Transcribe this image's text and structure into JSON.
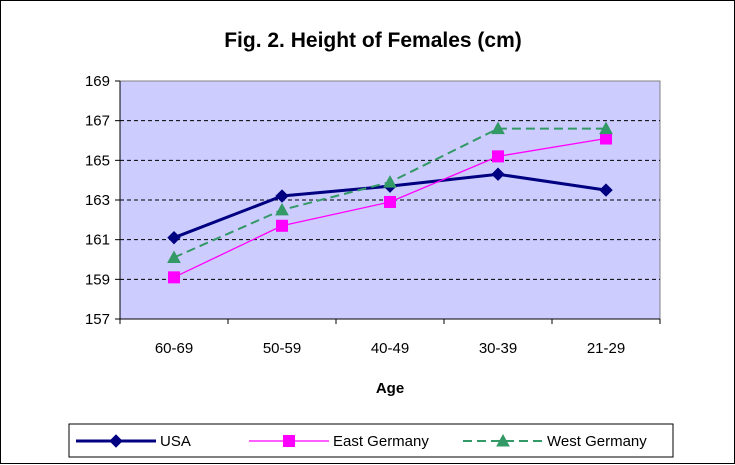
{
  "chart_data": {
    "type": "line",
    "title": "Fig. 2. Height of Females (cm)",
    "xlabel": "Age",
    "ylabel": "",
    "categories": [
      "60-69",
      "50-59",
      "40-49",
      "30-39",
      "21-29"
    ],
    "ylim": [
      157,
      169
    ],
    "yticks": [
      157,
      159,
      161,
      163,
      165,
      167,
      169
    ],
    "grid": "horizontal dashed",
    "plot_background": "#ccccff",
    "legend_position": "bottom",
    "series": [
      {
        "name": "USA",
        "values": [
          161.1,
          163.2,
          163.7,
          164.3,
          163.5
        ],
        "color": "#000080",
        "marker": "diamond",
        "line": "solid-thick"
      },
      {
        "name": "East Germany",
        "values": [
          159.1,
          161.7,
          162.9,
          165.2,
          166.1
        ],
        "color": "#ff00ff",
        "marker": "square",
        "line": "solid-thin"
      },
      {
        "name": "West Germany",
        "values": [
          160.1,
          162.5,
          163.9,
          166.6,
          166.6
        ],
        "color": "#339966",
        "marker": "triangle",
        "line": "dashed"
      }
    ]
  }
}
